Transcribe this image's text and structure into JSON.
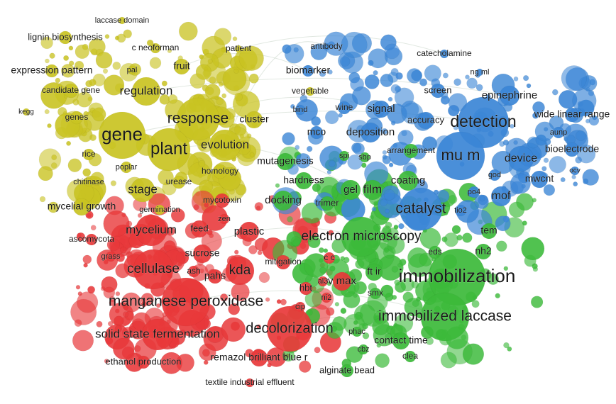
{
  "colors": {
    "yellow": "#c9c322",
    "red": "#e8383a",
    "green": "#3cba3a",
    "blue": "#3b86d6",
    "link": "#c9d6c9"
  },
  "clusters": {
    "yellow": [
      "laccase domain",
      "lignin biosynthesis",
      "c neoforman",
      "patient",
      "fruit",
      "expression pattern",
      "pal",
      "candidate gene",
      "regulation",
      "kegg",
      "genes",
      "gene",
      "response",
      "plant",
      "evolution",
      "rice",
      "poplar",
      "chitinase",
      "homology",
      "stage",
      "urease",
      "mycelial growth",
      "germination",
      "vegetable",
      "cluster"
    ],
    "red": [
      "mycotoxin",
      "feed",
      "zen",
      "mycelium",
      "ascomycota",
      "plastic",
      "grass",
      "sucrose",
      "cellulase",
      "ash",
      "pahs",
      "kda",
      "mitigation",
      "manganese peroxidase",
      "hbt",
      "cip",
      "ni2",
      "solid state fermentation",
      "decolorization",
      "ethanol production",
      "remazol brilliant blue r",
      "textile industrial effluent",
      "c c",
      "al3",
      "v max"
    ],
    "green": [
      "mutagenesis",
      "hardness",
      "docking",
      "trimer",
      "gel",
      "film",
      "coating",
      "electron microscopy",
      "eds",
      "nh2",
      "ft ir",
      "immobilization",
      "smx",
      "immobilized laccase",
      "phac",
      "contact time",
      "cbz",
      "clea",
      "alginate bead",
      "spi",
      "sbp",
      "arrangement",
      "tem"
    ],
    "blue": [
      "antibody",
      "biomarker",
      "catecholamine",
      "ng ml",
      "screen",
      "epinephrine",
      "bind",
      "wine",
      "signal",
      "mco",
      "deposition",
      "accuracy",
      "detection",
      "wide linear range",
      "aunp",
      "bioelectrode",
      "mu m",
      "device",
      "god",
      "mwcnt",
      "ocv",
      "po4",
      "mof",
      "catalyst",
      "tio2"
    ]
  }
}
